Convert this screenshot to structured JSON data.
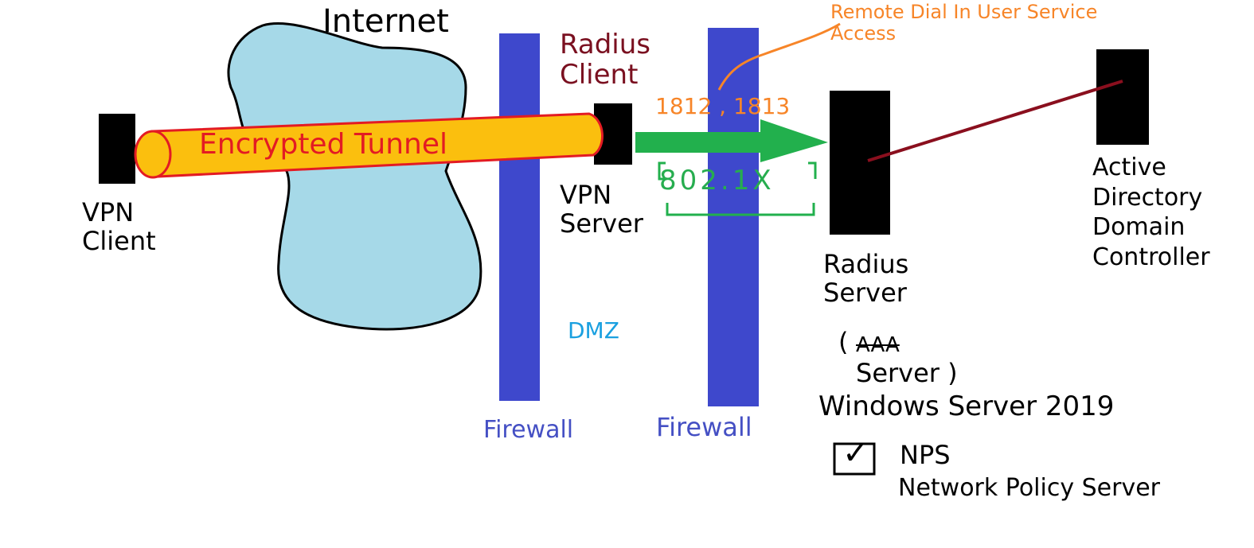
{
  "colors": {
    "cloud_fill": "#a6d9e8",
    "cloud_stroke": "#000000",
    "firewall": "#3e48cc",
    "tunnel_fill": "#fbbf0e",
    "tunnel_stroke": "#e31b23",
    "arrow": "#22b04d",
    "line_to_dc": "#8a0f1e",
    "radius_client_text": "#7a1020",
    "port_text": "#f78528",
    "remote_text": "#f78528",
    "protocol_text": "#27ad4f",
    "dmz_text": "#1aa0e0",
    "firewall_text": "#4550c4",
    "device": "#000000",
    "text": "#000000"
  },
  "labels": {
    "internet": "Internet",
    "vpn_client": "VPN\nClient",
    "vpn_server": "VPN\nServer",
    "radius_client": "Radius\nClient",
    "remote_dial_in": "Remote Dial In User Service\nAccess",
    "ports": "1812 , 1813",
    "protocol": "802.1X",
    "encrypted_tunnel": "Encrypted Tunnel",
    "dmz": "DMZ",
    "firewall_left": "Firewall",
    "firewall_right": "Firewall",
    "radius_server": "Radius\nServer",
    "aaa_open": "(",
    "aaa": "AAA",
    "aaa_server": "Server )",
    "windows_server": "Windows Server 2019",
    "checkbox_mark": "✓",
    "nps": "NPS",
    "nps_full": "Network Policy Server",
    "active_directory": "Active\nDirectory\nDomain\nController"
  }
}
